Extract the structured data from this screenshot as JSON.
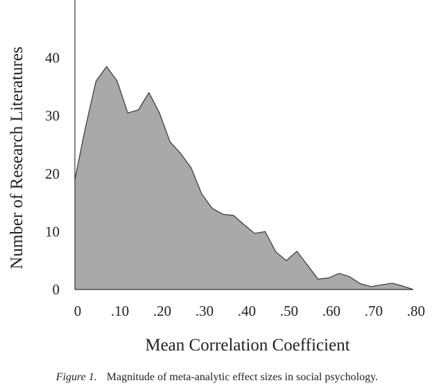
{
  "chart_data": {
    "type": "area",
    "xlabel": "Mean Correlation Coefficient",
    "ylabel": "Number of Research Literatures",
    "xlim": [
      0,
      0.8
    ],
    "ylim": [
      0,
      50
    ],
    "x_ticks": [
      {
        "value": 0,
        "label": "0"
      },
      {
        "value": 0.1,
        "label": ".10"
      },
      {
        "value": 0.2,
        "label": ".20"
      },
      {
        "value": 0.3,
        "label": ".30"
      },
      {
        "value": 0.4,
        "label": ".40"
      },
      {
        "value": 0.5,
        "label": ".50"
      },
      {
        "value": 0.6,
        "label": ".60"
      },
      {
        "value": 0.7,
        "label": ".70"
      },
      {
        "value": 0.8,
        "label": ".80"
      }
    ],
    "y_ticks": [
      {
        "value": 0,
        "label": "0"
      },
      {
        "value": 10,
        "label": "10"
      },
      {
        "value": 20,
        "label": "20"
      },
      {
        "value": 30,
        "label": "30"
      },
      {
        "value": 40,
        "label": "40"
      }
    ],
    "grid": false,
    "fill_color": "#a9a9a9",
    "line_color": "#333333",
    "x": [
      0,
      0.025,
      0.05,
      0.075,
      0.1,
      0.125,
      0.15,
      0.175,
      0.2,
      0.225,
      0.25,
      0.275,
      0.3,
      0.325,
      0.35,
      0.375,
      0.4,
      0.425,
      0.45,
      0.475,
      0.5,
      0.525,
      0.55,
      0.575,
      0.6,
      0.625,
      0.65,
      0.675,
      0.7,
      0.725,
      0.75,
      0.775,
      0.8
    ],
    "values": [
      19,
      28,
      36,
      38.5,
      36,
      30.5,
      31,
      34,
      30.5,
      25.5,
      23.5,
      21,
      16.5,
      14,
      13,
      12.8,
      11.2,
      9.7,
      10,
      6.5,
      5,
      6.6,
      4.2,
      1.8,
      2,
      2.8,
      2.2,
      1,
      0.5,
      0.8,
      1.1,
      0.6,
      0
    ]
  },
  "caption": {
    "label": "Figure 1.",
    "text": "Magnitude of meta-analytic effect sizes in social psychology."
  }
}
